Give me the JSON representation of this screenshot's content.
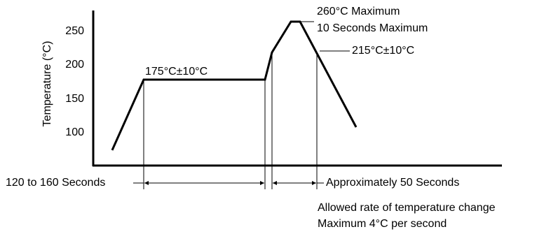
{
  "axis": {
    "ylabel": "Temperature (°C)",
    "yticks": [
      "250",
      "200",
      "150",
      "100"
    ]
  },
  "annotations": {
    "soak": "175°C±10°C",
    "peak": "260°C Maximum",
    "peak_time": "10 Seconds Maximum",
    "reflow": "215°C±10°C",
    "soak_time": "120 to 160 Seconds",
    "reflow_time": "Approximately 50 Seconds",
    "rate": [
      "Allowed rate of temperature change",
      "Maximum 4°C per second"
    ]
  }
}
